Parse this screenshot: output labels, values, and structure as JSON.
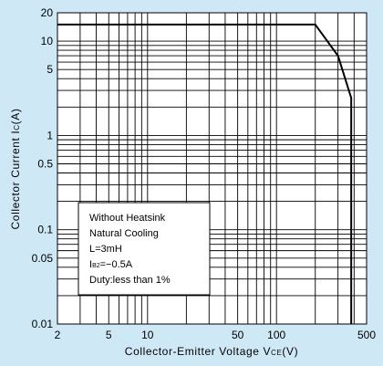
{
  "chart_data": {
    "type": "line",
    "title": "",
    "xlabel": {
      "main": "Collector-Emitter Voltage V",
      "sub": "CE",
      "unit": "(V)"
    },
    "ylabel": {
      "main": "Collector Current I",
      "sub": "C",
      "unit": "(A)"
    },
    "x_scale": "log",
    "y_scale": "log",
    "xlim": [
      2,
      500
    ],
    "ylim": [
      0.01,
      20
    ],
    "x_ticks": [
      {
        "value": 2,
        "label": "2"
      },
      {
        "value": 5,
        "label": "5"
      },
      {
        "value": 10,
        "label": "10"
      },
      {
        "value": 50,
        "label": "50"
      },
      {
        "value": 100,
        "label": "100"
      },
      {
        "value": 500,
        "label": "500"
      }
    ],
    "y_ticks": [
      {
        "value": 20,
        "label": "20"
      },
      {
        "value": 10,
        "label": "10"
      },
      {
        "value": 5,
        "label": "5"
      },
      {
        "value": 1,
        "label": "1"
      },
      {
        "value": 0.5,
        "label": "0.5"
      },
      {
        "value": 0.1,
        "label": "0.1"
      },
      {
        "value": 0.05,
        "label": "0.05"
      },
      {
        "value": 0.01,
        "label": "0.01"
      }
    ],
    "grid": true,
    "series": [
      {
        "x": [
          2,
          200,
          300,
          380,
          380
        ],
        "y": [
          15,
          15,
          7,
          2.5,
          0.01
        ]
      }
    ],
    "annotation": {
      "lines": [
        {
          "text": "Without Heatsink"
        },
        {
          "text": "Natural Cooling"
        },
        {
          "text": "L=3mH"
        },
        {
          "prefix": "I",
          "sub": "B2",
          "text": "=−0.5A"
        },
        {
          "text": "Duty:less than 1%"
        }
      ]
    },
    "colors": {
      "background": "#cfe8f6",
      "plot_area": "#ffffff",
      "grid": "#000000",
      "curve": "#000000"
    }
  }
}
